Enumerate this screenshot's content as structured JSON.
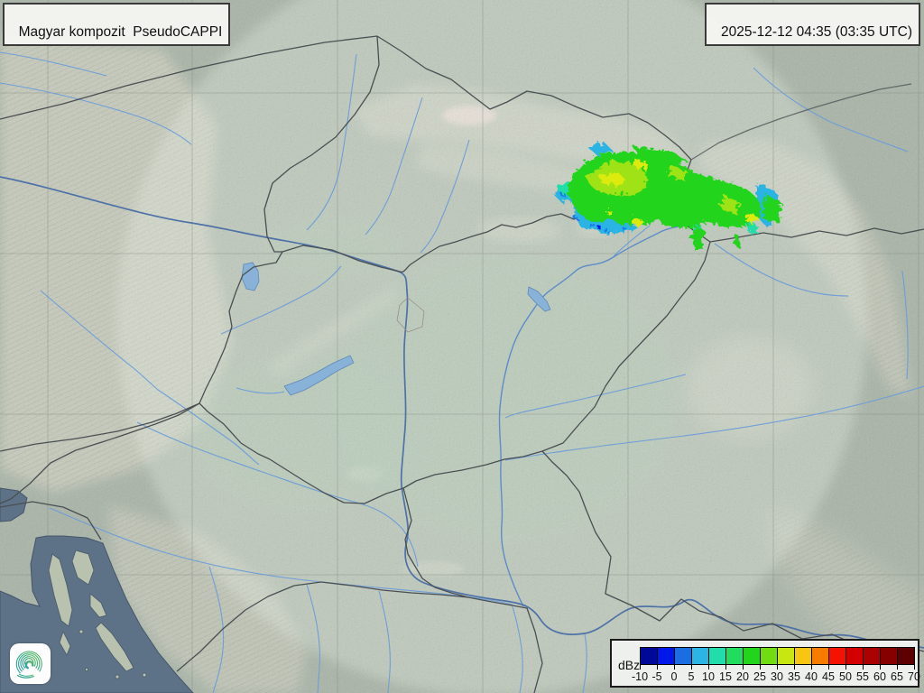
{
  "header": {
    "product_label": "Magyar kompozit  PseudoCAPPI",
    "timestamp_label": "2025-12-12 04:35 (03:35 UTC)"
  },
  "legend": {
    "unit": "dBz",
    "ticks": [
      "-10",
      "-5",
      "0",
      "5",
      "10",
      "15",
      "20",
      "25",
      "30",
      "35",
      "40",
      "45",
      "50",
      "55",
      "60",
      "65",
      "70"
    ],
    "colors": [
      "#000898",
      "#0018e8",
      "#1a6ee0",
      "#2cb4e4",
      "#22dcaa",
      "#22dc5e",
      "#22d41c",
      "#72dc12",
      "#c8e612",
      "#f6c612",
      "#f67c00",
      "#f61200",
      "#d40000",
      "#aa0000",
      "#860000",
      "#5e0000"
    ]
  },
  "map_colors": {
    "terrain_base": "#a9b4a7",
    "coverage_tint": "#eef6ea",
    "sea": "#5d7187",
    "river": "#6f9ed8",
    "border": "#4a4f52",
    "lake": "#88b2d8"
  },
  "logo": {
    "icon": "spiral-vortex-logo"
  }
}
